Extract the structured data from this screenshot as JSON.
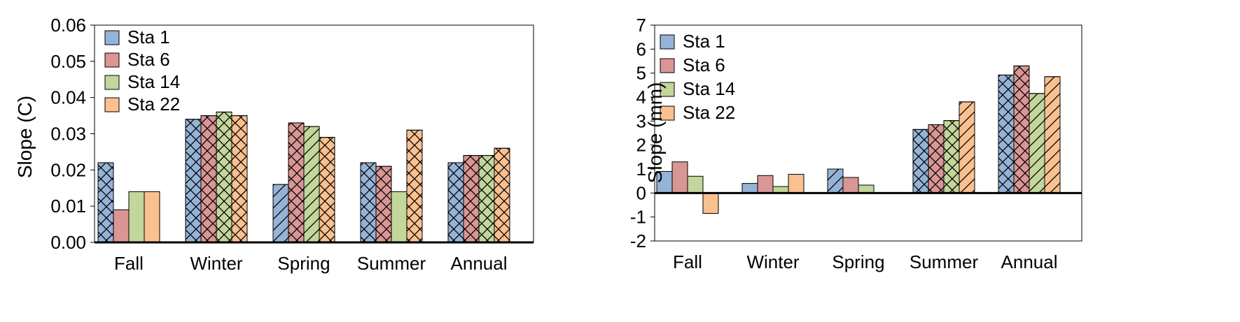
{
  "chart_data": [
    {
      "type": "bar",
      "categories": [
        "Fall",
        "Winter",
        "Spring",
        "Summer",
        "Annual"
      ],
      "ylabel": "Slope (C)",
      "ylim": [
        0,
        0.06
      ],
      "yticks": [
        "0.00",
        "0.01",
        "0.02",
        "0.03",
        "0.04",
        "0.05",
        "0.06"
      ],
      "legend_position": "top-left",
      "grid": false,
      "series": [
        {
          "name": "Sta 1",
          "color": "#95b3d7",
          "values": [
            0.022,
            0.034,
            0.016,
            0.022,
            0.022
          ],
          "patterns": [
            "cross",
            "cross",
            "diag",
            "cross",
            "cross"
          ]
        },
        {
          "name": "Sta 6",
          "color": "#d99694",
          "values": [
            0.009,
            0.035,
            0.033,
            0.021,
            0.024
          ],
          "patterns": [
            "none",
            "cross",
            "cross",
            "cross",
            "cross"
          ]
        },
        {
          "name": "Sta 14",
          "color": "#c3d69b",
          "values": [
            0.014,
            0.036,
            0.032,
            0.014,
            0.024
          ],
          "patterns": [
            "none",
            "cross",
            "diag",
            "none",
            "cross"
          ]
        },
        {
          "name": "Sta 22",
          "color": "#fac090",
          "values": [
            0.014,
            0.035,
            0.029,
            0.031,
            0.026
          ],
          "patterns": [
            "none",
            "cross",
            "cross",
            "cross",
            "cross"
          ]
        }
      ]
    },
    {
      "type": "bar",
      "categories": [
        "Fall",
        "Winter",
        "Spring",
        "Summer",
        "Annual"
      ],
      "ylabel": "Slope (mm)",
      "ylim": [
        -2,
        7
      ],
      "yticks": [
        "-2",
        "-1",
        "0",
        "1",
        "2",
        "3",
        "4",
        "5",
        "6",
        "7"
      ],
      "legend_position": "top-left",
      "grid": false,
      "series": [
        {
          "name": "Sta 1",
          "color": "#95b3d7",
          "values": [
            0.9,
            0.4,
            1.0,
            2.65,
            4.92
          ],
          "patterns": [
            "none",
            "none",
            "diag",
            "cross",
            "cross"
          ]
        },
        {
          "name": "Sta 6",
          "color": "#d99694",
          "values": [
            1.3,
            0.73,
            0.65,
            2.85,
            5.3
          ],
          "patterns": [
            "none",
            "none",
            "none",
            "cross",
            "cross"
          ]
        },
        {
          "name": "Sta 14",
          "color": "#c3d69b",
          "values": [
            0.7,
            0.27,
            0.33,
            3.02,
            4.15
          ],
          "patterns": [
            "none",
            "none",
            "none",
            "cross",
            "diag"
          ]
        },
        {
          "name": "Sta 22",
          "color": "#fac090",
          "values": [
            -0.85,
            0.78,
            0.0,
            3.8,
            4.85
          ],
          "patterns": [
            "none",
            "none",
            "none",
            "diag",
            "diag"
          ]
        }
      ]
    }
  ]
}
